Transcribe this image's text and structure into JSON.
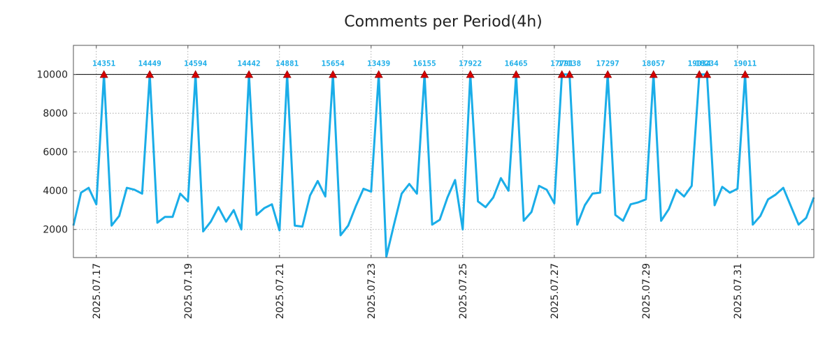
{
  "chart_data": {
    "type": "line",
    "title": "Comments per Period(4h)",
    "xlabel": "",
    "ylabel": "",
    "x_start": "2025.07.16 12:00",
    "interval_hours": 4,
    "xlim": [
      "2025.07.16 12:00",
      "2025.08.01 16:00"
    ],
    "ylim": [
      550,
      11500
    ],
    "yticks": [
      2000,
      4000,
      6000,
      8000,
      10000
    ],
    "ytick_labels": [
      "2000",
      "4000",
      "6000",
      "8000",
      "10000"
    ],
    "xtick_labels": [
      "2025.07.17",
      "2025.07.19",
      "2025.07.21",
      "2025.07.23",
      "2025.07.25",
      "2025.07.27",
      "2025.07.29",
      "2025.07.31"
    ],
    "cap_line": 10000,
    "grid": true,
    "line_color": "#1AADE8",
    "marker_color": "#D40000",
    "series": [
      {
        "values": [
          2200,
          3900,
          4150,
          3300,
          14351,
          2200,
          2700,
          4150,
          4050,
          3850,
          14449,
          2350,
          2650,
          2650,
          3850,
          3450,
          14594,
          1900,
          2400,
          3150,
          2400,
          3000,
          2000,
          14442,
          2750,
          3100,
          3300,
          1950,
          14881,
          2200,
          2150,
          3750,
          4500,
          3700,
          15654,
          1700,
          2200,
          3200,
          4100,
          3950,
          13439,
          600,
          2250,
          3850,
          4350,
          3850,
          16155,
          2250,
          2500,
          3650,
          4550,
          2000,
          17922,
          3450,
          3150,
          3650,
          4650,
          4000,
          16465,
          2450,
          2900,
          4250,
          4050,
          3350,
          17791,
          17138,
          2250,
          3250,
          3850,
          3900,
          17297,
          2750,
          2450,
          3300,
          3400,
          3550,
          18057,
          2450,
          3050,
          4050,
          3700,
          4250,
          19034,
          18234,
          3250,
          4200,
          3900,
          4100,
          19011,
          2250,
          2700,
          3550,
          3800,
          4150,
          3200,
          2250,
          2600,
          3650
        ]
      }
    ],
    "peaks": [
      {
        "index": 4,
        "label": "14351"
      },
      {
        "index": 10,
        "label": "14449"
      },
      {
        "index": 16,
        "label": "14594"
      },
      {
        "index": 23,
        "label": "14442"
      },
      {
        "index": 28,
        "label": "14881"
      },
      {
        "index": 34,
        "label": "15654"
      },
      {
        "index": 40,
        "label": "13439"
      },
      {
        "index": 46,
        "label": "16155"
      },
      {
        "index": 52,
        "label": "17922"
      },
      {
        "index": 58,
        "label": "16465"
      },
      {
        "index": 64,
        "label": "17791"
      },
      {
        "index": 65,
        "label": "17138"
      },
      {
        "index": 70,
        "label": "17297"
      },
      {
        "index": 76,
        "label": "18057"
      },
      {
        "index": 82,
        "label": "19034"
      },
      {
        "index": 83,
        "label": "18234"
      },
      {
        "index": 88,
        "label": "19011"
      }
    ]
  }
}
